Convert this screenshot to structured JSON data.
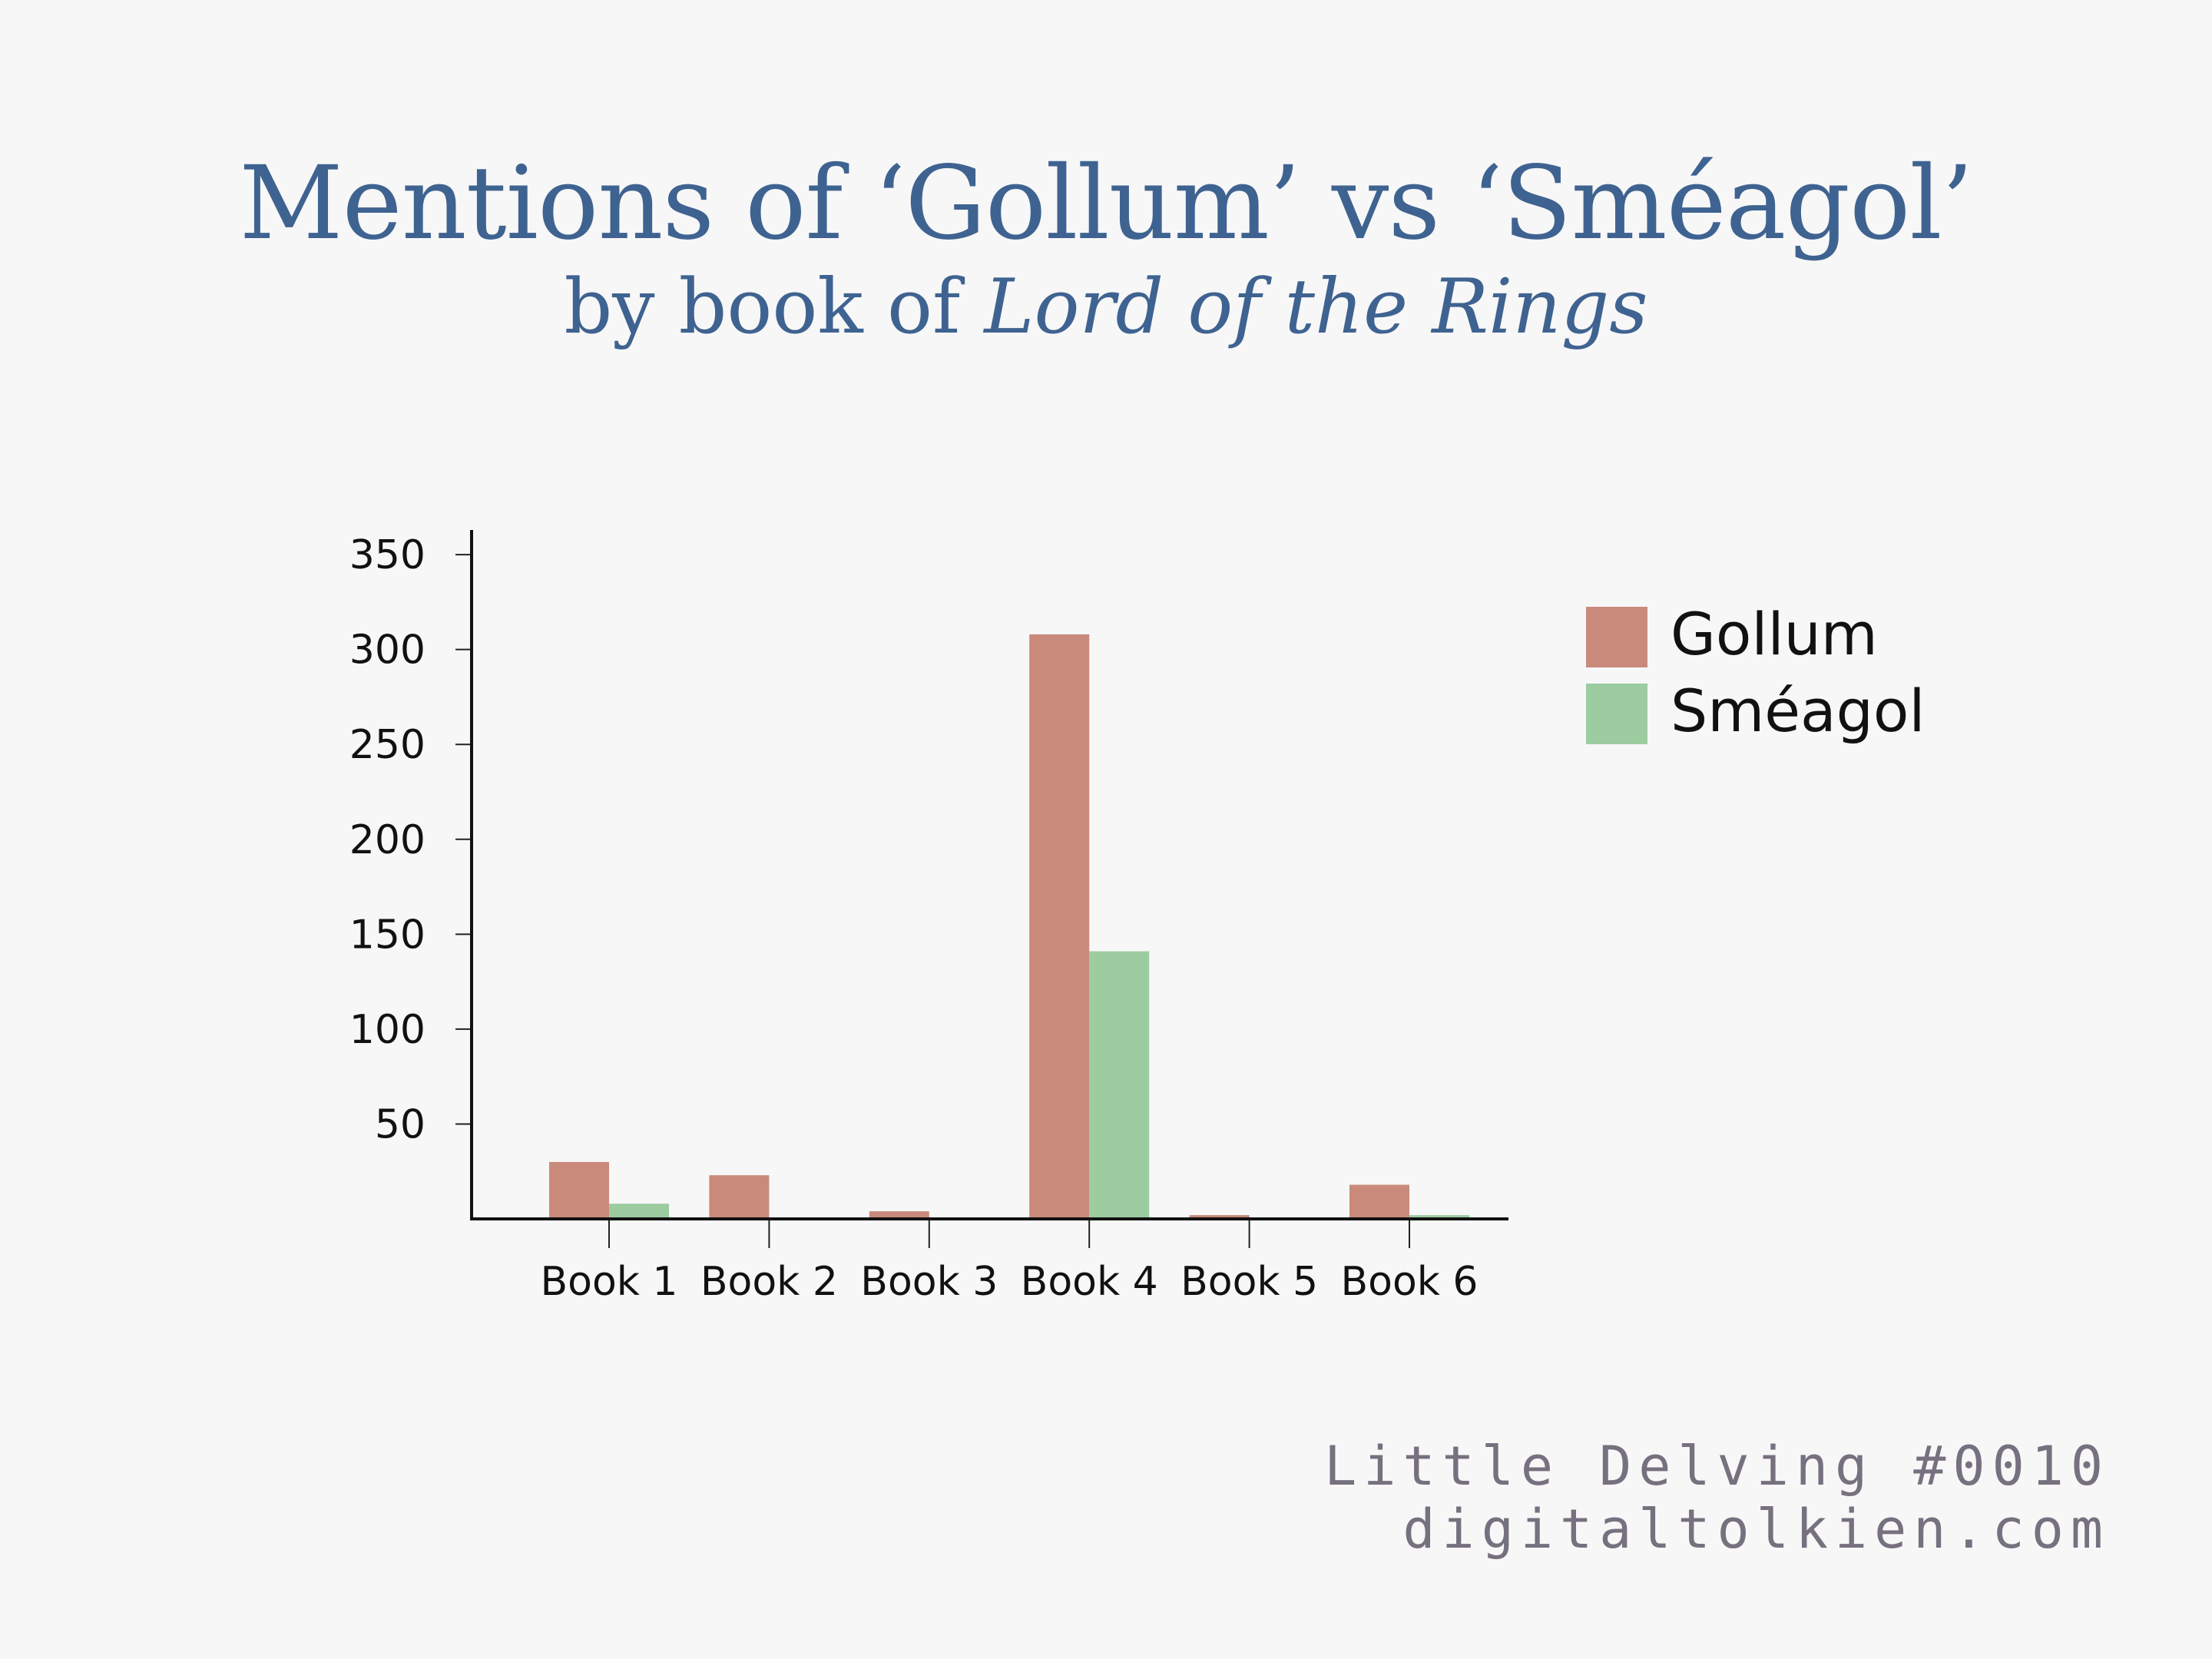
{
  "title": "Mentions of ‘Gollum’ vs ‘Sméagol’",
  "subtitle_prefix": "by book of ",
  "subtitle_italic": "Lord of the Rings",
  "credit": {
    "line1": "Little Delving #0010",
    "line2": "digitaltolkien.com"
  },
  "chart_data": {
    "type": "bar",
    "categories": [
      "Book 1",
      "Book 2",
      "Book 3",
      "Book 4",
      "Book 5",
      "Book 6"
    ],
    "series": [
      {
        "name": "Gollum",
        "values": [
          30,
          23,
          4,
          308,
          2,
          18
        ],
        "color": "#c98a7c"
      },
      {
        "name": "Sméagol",
        "values": [
          8,
          0,
          0,
          141,
          0,
          2
        ],
        "color": "#9ccc9f"
      }
    ],
    "yticks": [
      50,
      100,
      150,
      200,
      250,
      300,
      350
    ],
    "ylim": [
      0,
      363
    ],
    "legend": "top-right",
    "grid": false
  }
}
